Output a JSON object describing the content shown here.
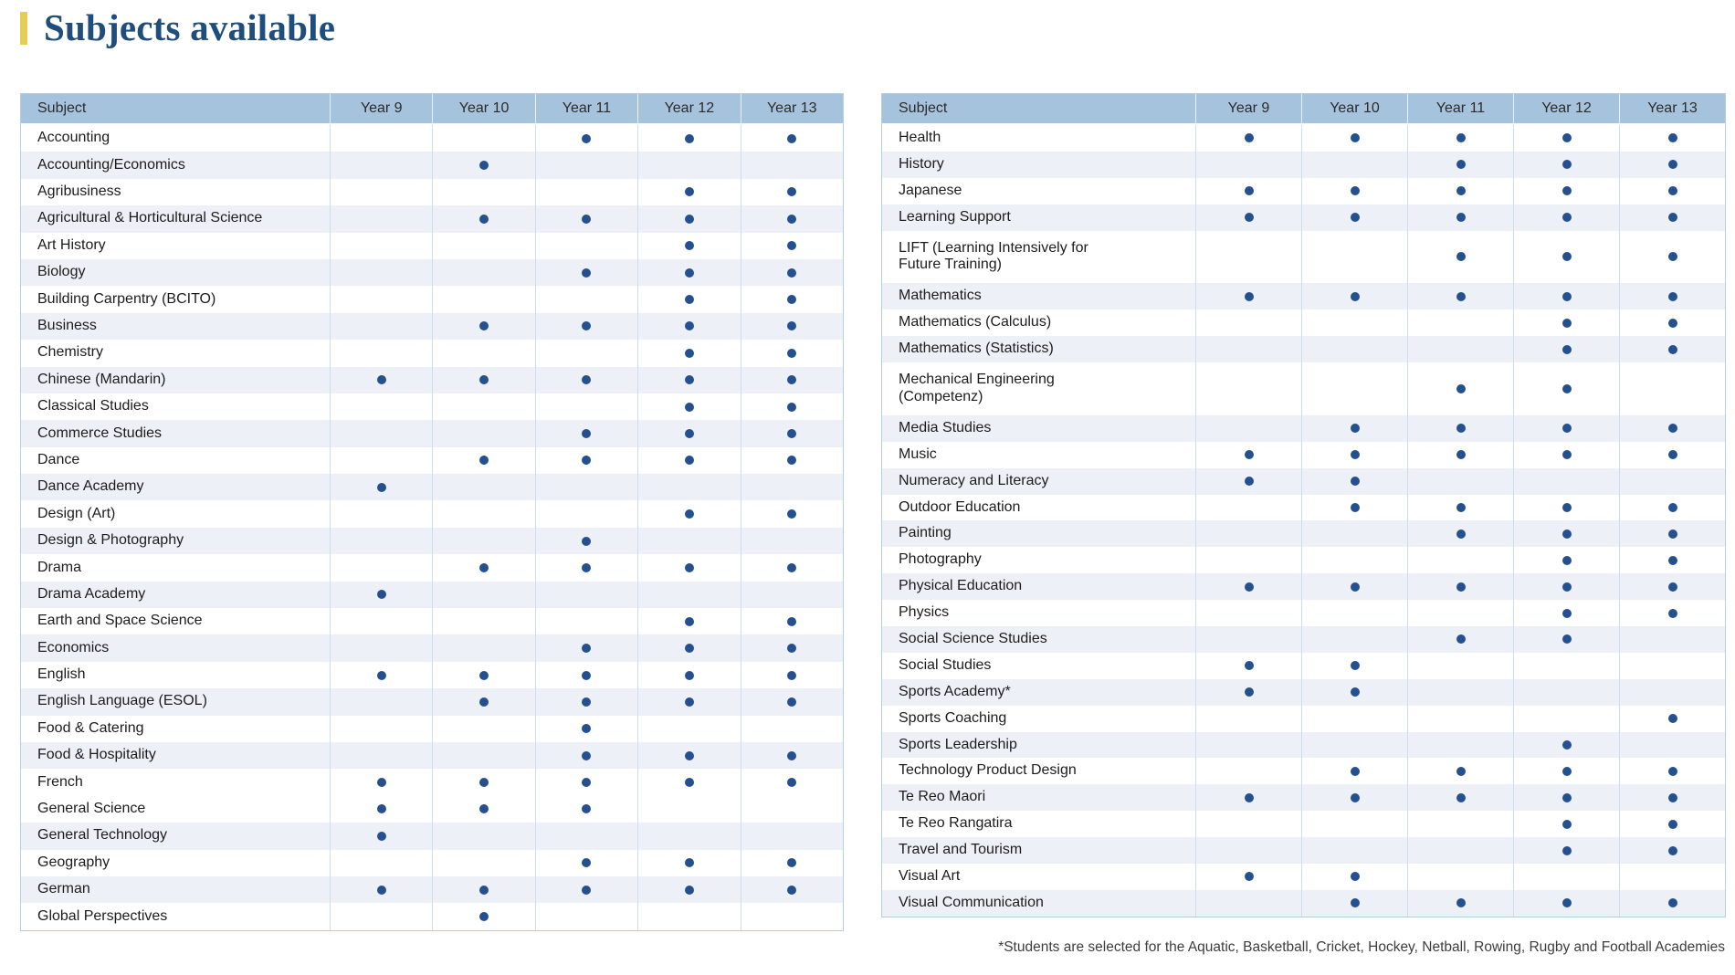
{
  "page": {
    "title": "Subjects available",
    "footnote": "*Students are selected for the Aquatic, Basketball, Cricket, Hockey, Netball, Rowing, Rugby and Football Academies"
  },
  "colors": {
    "title": "#1f4e7d",
    "accent": "#e5ce54",
    "header": "#a6c3de",
    "shade": "#edf1f7",
    "dot": "#24508f",
    "border": "#b5cee4",
    "colline": "#ccdeee"
  },
  "columns": [
    "Subject",
    "Year 9",
    "Year 10",
    "Year 11",
    "Year 12",
    "Year 13"
  ],
  "tables": [
    {
      "id": "left",
      "rows": [
        {
          "subject": "Accounting",
          "years": [
            false,
            false,
            true,
            true,
            true
          ],
          "shaded": false,
          "tall": false
        },
        {
          "subject": "Accounting/Economics",
          "years": [
            false,
            true,
            false,
            false,
            false
          ],
          "shaded": true,
          "tall": false
        },
        {
          "subject": "Agribusiness",
          "years": [
            false,
            false,
            false,
            true,
            true
          ],
          "shaded": false,
          "tall": false
        },
        {
          "subject": "Agricultural & Horticultural Science",
          "years": [
            false,
            true,
            true,
            true,
            true
          ],
          "shaded": true,
          "tall": false
        },
        {
          "subject": "Art History",
          "years": [
            false,
            false,
            false,
            true,
            true
          ],
          "shaded": false,
          "tall": false
        },
        {
          "subject": "Biology",
          "years": [
            false,
            false,
            true,
            true,
            true
          ],
          "shaded": true,
          "tall": false
        },
        {
          "subject": "Building Carpentry (BCITO)",
          "years": [
            false,
            false,
            false,
            true,
            true
          ],
          "shaded": false,
          "tall": false
        },
        {
          "subject": "Business",
          "years": [
            false,
            true,
            true,
            true,
            true
          ],
          "shaded": true,
          "tall": false
        },
        {
          "subject": "Chemistry",
          "years": [
            false,
            false,
            false,
            true,
            true
          ],
          "shaded": false,
          "tall": false
        },
        {
          "subject": "Chinese (Mandarin)",
          "years": [
            true,
            true,
            true,
            true,
            true
          ],
          "shaded": true,
          "tall": false
        },
        {
          "subject": "Classical Studies",
          "years": [
            false,
            false,
            false,
            true,
            true
          ],
          "shaded": false,
          "tall": false
        },
        {
          "subject": "Commerce Studies",
          "years": [
            false,
            false,
            true,
            true,
            true
          ],
          "shaded": true,
          "tall": false
        },
        {
          "subject": "Dance",
          "years": [
            false,
            true,
            true,
            true,
            true
          ],
          "shaded": false,
          "tall": false
        },
        {
          "subject": "Dance Academy",
          "years": [
            true,
            false,
            false,
            false,
            false
          ],
          "shaded": true,
          "tall": false
        },
        {
          "subject": "Design (Art)",
          "years": [
            false,
            false,
            false,
            true,
            true
          ],
          "shaded": false,
          "tall": false
        },
        {
          "subject": "Design & Photography",
          "years": [
            false,
            false,
            true,
            false,
            false
          ],
          "shaded": true,
          "tall": false
        },
        {
          "subject": "Drama",
          "years": [
            false,
            true,
            true,
            true,
            true
          ],
          "shaded": false,
          "tall": false
        },
        {
          "subject": "Drama Academy",
          "years": [
            true,
            false,
            false,
            false,
            false
          ],
          "shaded": true,
          "tall": false
        },
        {
          "subject": "Earth and Space Science",
          "years": [
            false,
            false,
            false,
            true,
            true
          ],
          "shaded": false,
          "tall": false
        },
        {
          "subject": "Economics",
          "years": [
            false,
            false,
            true,
            true,
            true
          ],
          "shaded": true,
          "tall": false
        },
        {
          "subject": "English",
          "years": [
            true,
            true,
            true,
            true,
            true
          ],
          "shaded": false,
          "tall": false
        },
        {
          "subject": "English Language (ESOL)",
          "years": [
            false,
            true,
            true,
            true,
            true
          ],
          "shaded": true,
          "tall": false
        },
        {
          "subject": "Food & Catering",
          "years": [
            false,
            false,
            true,
            false,
            false
          ],
          "shaded": false,
          "tall": false
        },
        {
          "subject": "Food & Hospitality",
          "years": [
            false,
            false,
            true,
            true,
            true
          ],
          "shaded": true,
          "tall": false
        },
        {
          "subject": "French",
          "years": [
            true,
            true,
            true,
            true,
            true
          ],
          "shaded": false,
          "tall": false
        },
        {
          "subject": "General Science",
          "years": [
            true,
            true,
            true,
            false,
            false
          ],
          "shaded": false,
          "tall": false
        },
        {
          "subject": "General Technology",
          "years": [
            true,
            false,
            false,
            false,
            false
          ],
          "shaded": true,
          "tall": false
        },
        {
          "subject": "Geography",
          "years": [
            false,
            false,
            true,
            true,
            true
          ],
          "shaded": false,
          "tall": false
        },
        {
          "subject": "German",
          "years": [
            true,
            true,
            true,
            true,
            true
          ],
          "shaded": true,
          "tall": false
        },
        {
          "subject": "Global Perspectives",
          "years": [
            false,
            true,
            false,
            false,
            false
          ],
          "shaded": false,
          "tall": false
        }
      ]
    },
    {
      "id": "right",
      "rows": [
        {
          "subject": "Health",
          "years": [
            true,
            true,
            true,
            true,
            true
          ],
          "shaded": false,
          "tall": false
        },
        {
          "subject": "History",
          "years": [
            false,
            false,
            true,
            true,
            true
          ],
          "shaded": true,
          "tall": false
        },
        {
          "subject": "Japanese",
          "years": [
            true,
            true,
            true,
            true,
            true
          ],
          "shaded": false,
          "tall": false
        },
        {
          "subject": "Learning Support",
          "years": [
            true,
            true,
            true,
            true,
            true
          ],
          "shaded": true,
          "tall": false
        },
        {
          "subject": "LIFT (Learning Intensively for Future Training)",
          "years": [
            false,
            false,
            true,
            true,
            true
          ],
          "shaded": false,
          "tall": true
        },
        {
          "subject": "Mathematics",
          "years": [
            true,
            true,
            true,
            true,
            true
          ],
          "shaded": true,
          "tall": false
        },
        {
          "subject": "Mathematics (Calculus)",
          "years": [
            false,
            false,
            false,
            true,
            true
          ],
          "shaded": false,
          "tall": false
        },
        {
          "subject": "Mathematics (Statistics)",
          "years": [
            false,
            false,
            false,
            true,
            true
          ],
          "shaded": true,
          "tall": false
        },
        {
          "subject": "Mechanical Engineering (Competenz)",
          "years": [
            false,
            false,
            true,
            true,
            false
          ],
          "shaded": false,
          "tall": true
        },
        {
          "subject": "Media Studies",
          "years": [
            false,
            true,
            true,
            true,
            true
          ],
          "shaded": true,
          "tall": false
        },
        {
          "subject": "Music",
          "years": [
            true,
            true,
            true,
            true,
            true
          ],
          "shaded": false,
          "tall": false
        },
        {
          "subject": "Numeracy and Literacy",
          "years": [
            true,
            true,
            false,
            false,
            false
          ],
          "shaded": true,
          "tall": false
        },
        {
          "subject": "Outdoor Education",
          "years": [
            false,
            true,
            true,
            true,
            true
          ],
          "shaded": false,
          "tall": false
        },
        {
          "subject": "Painting",
          "years": [
            false,
            false,
            true,
            true,
            true
          ],
          "shaded": true,
          "tall": false
        },
        {
          "subject": "Photography",
          "years": [
            false,
            false,
            false,
            true,
            true
          ],
          "shaded": false,
          "tall": false
        },
        {
          "subject": "Physical Education",
          "years": [
            true,
            true,
            true,
            true,
            true
          ],
          "shaded": true,
          "tall": false
        },
        {
          "subject": "Physics",
          "years": [
            false,
            false,
            false,
            true,
            true
          ],
          "shaded": false,
          "tall": false
        },
        {
          "subject": "Social Science Studies",
          "years": [
            false,
            false,
            true,
            true,
            false
          ],
          "shaded": true,
          "tall": false
        },
        {
          "subject": "Social Studies",
          "years": [
            true,
            true,
            false,
            false,
            false
          ],
          "shaded": false,
          "tall": false
        },
        {
          "subject": "Sports Academy*",
          "years": [
            true,
            true,
            false,
            false,
            false
          ],
          "shaded": true,
          "tall": false
        },
        {
          "subject": "Sports Coaching",
          "years": [
            false,
            false,
            false,
            false,
            true
          ],
          "shaded": false,
          "tall": false
        },
        {
          "subject": "Sports Leadership",
          "years": [
            false,
            false,
            false,
            true,
            false
          ],
          "shaded": true,
          "tall": false
        },
        {
          "subject": "Technology Product Design",
          "years": [
            false,
            true,
            true,
            true,
            true
          ],
          "shaded": false,
          "tall": false
        },
        {
          "subject": "Te Reo Maori",
          "years": [
            true,
            true,
            true,
            true,
            true
          ],
          "shaded": true,
          "tall": false
        },
        {
          "subject": "Te Reo Rangatira",
          "years": [
            false,
            false,
            false,
            true,
            true
          ],
          "shaded": false,
          "tall": false
        },
        {
          "subject": "Travel and Tourism",
          "years": [
            false,
            false,
            false,
            true,
            true
          ],
          "shaded": true,
          "tall": false
        },
        {
          "subject": "Visual Art",
          "years": [
            true,
            true,
            false,
            false,
            false
          ],
          "shaded": false,
          "tall": false
        },
        {
          "subject": "Visual Communication",
          "years": [
            false,
            true,
            true,
            true,
            true
          ],
          "shaded": true,
          "tall": false
        }
      ]
    }
  ]
}
